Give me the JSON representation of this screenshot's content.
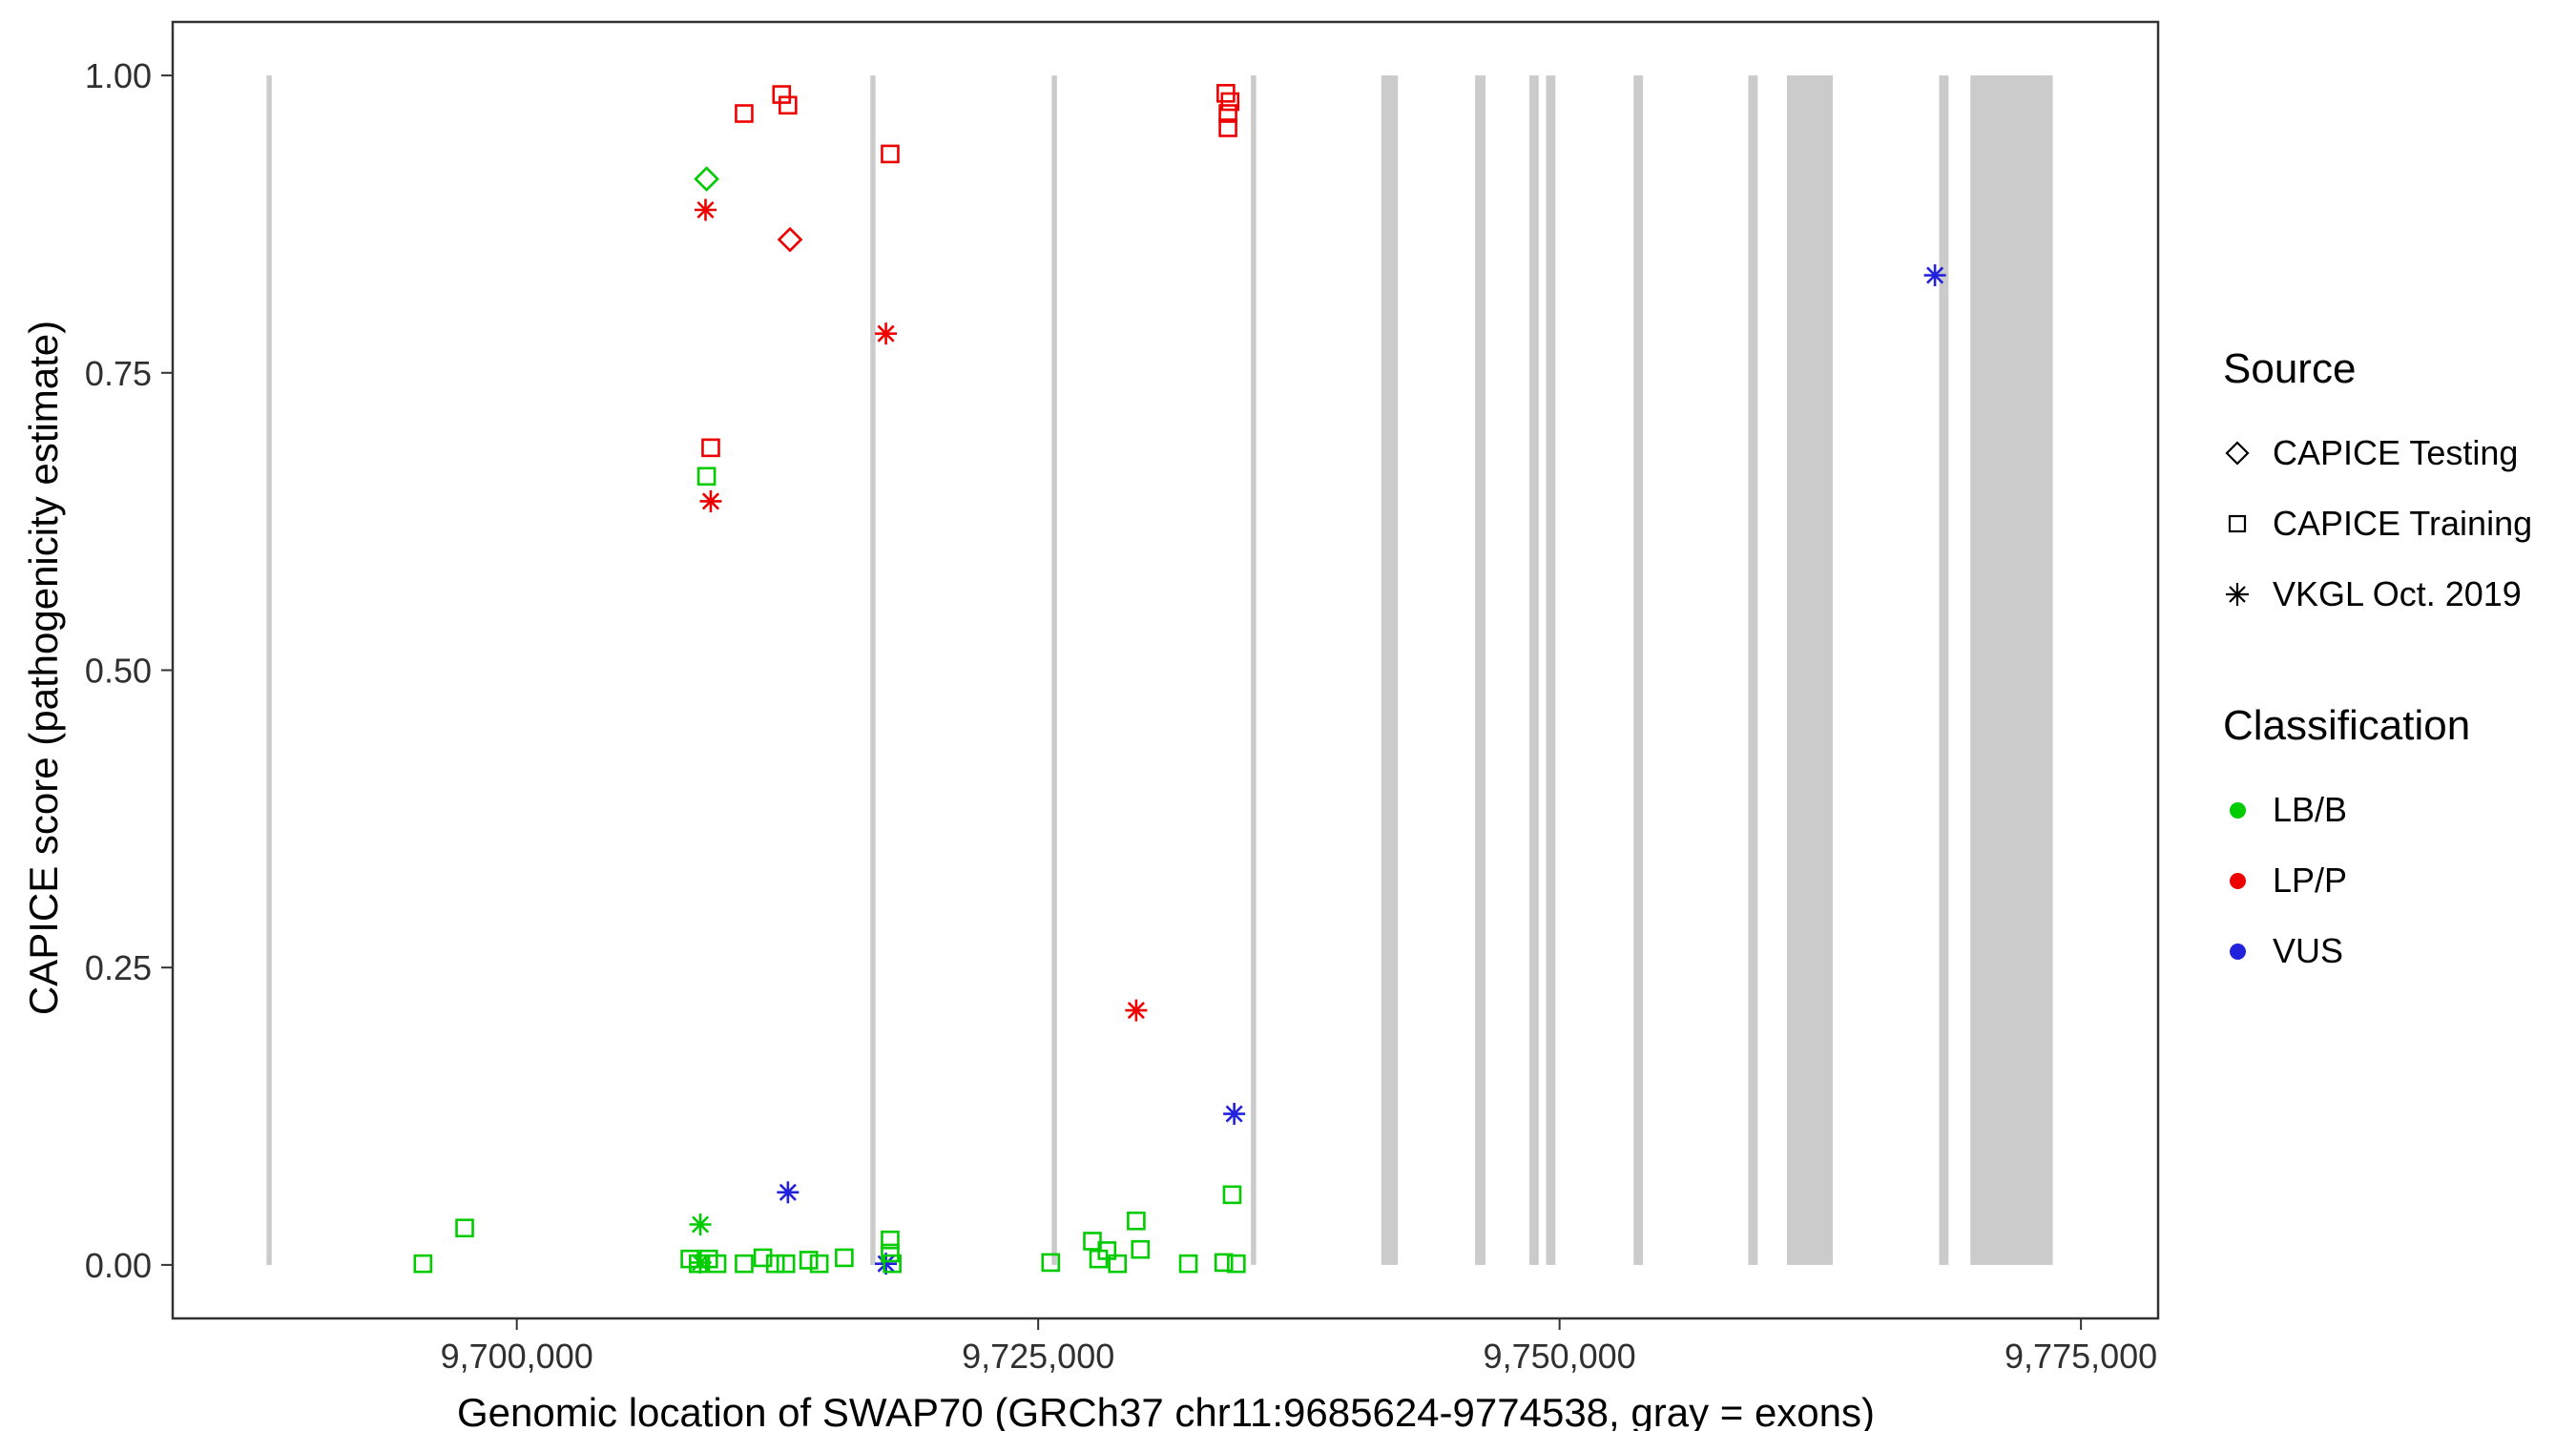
{
  "figure": {
    "xlabel": "Genomic location of SWAP70 (GRCh37 chr11:9685624-9774538, gray = exons)",
    "ylabel": "CAPICE score (pathogenicity estimate)"
  },
  "legend": {
    "source": {
      "title": "Source",
      "items": [
        {
          "label": "CAPICE Testing",
          "shape": "diamond"
        },
        {
          "label": "CAPICE Training",
          "shape": "square"
        },
        {
          "label": "VKGL Oct. 2019",
          "shape": "asterisk"
        }
      ]
    },
    "classification": {
      "title": "Classification",
      "items": [
        {
          "label": "LB/B",
          "color": "#00CC00"
        },
        {
          "label": "LP/P",
          "color": "#EE0000"
        },
        {
          "label": "VUS",
          "color": "#2222DD"
        }
      ]
    }
  },
  "chart_data": {
    "type": "scatter",
    "title": "",
    "xlabel": "Genomic location of SWAP70 (GRCh37 chr11:9685624-9774538, gray = exons)",
    "ylabel": "CAPICE score (pathogenicity estimate)",
    "xlim": [
      9683500,
      9778700
    ],
    "ylim": [
      -0.045,
      1.045
    ],
    "grid": false,
    "legend_position": "right",
    "x_ticks": [
      {
        "value": 9700000,
        "label": "9,700,000"
      },
      {
        "value": 9725000,
        "label": "9,725,000"
      },
      {
        "value": 9750000,
        "label": "9,750,000"
      },
      {
        "value": 9775000,
        "label": "9,775,000"
      }
    ],
    "y_ticks": [
      {
        "value": 0.0,
        "label": "0.00"
      },
      {
        "value": 0.25,
        "label": "0.25"
      },
      {
        "value": 0.5,
        "label": "0.50"
      },
      {
        "value": 0.75,
        "label": "0.75"
      },
      {
        "value": 1.0,
        "label": "1.00"
      }
    ],
    "exon_color": "#CBCBCB",
    "exons": [
      [
        9688000,
        9688250
      ],
      [
        9716950,
        9717200
      ],
      [
        9725650,
        9725900
      ],
      [
        9735200,
        9735450
      ],
      [
        9741450,
        9742250
      ],
      [
        9745950,
        9746450
      ],
      [
        9748550,
        9749000
      ],
      [
        9749350,
        9749800
      ],
      [
        9753550,
        9754000
      ],
      [
        9759050,
        9759500
      ],
      [
        9760900,
        9763100
      ],
      [
        9768200,
        9768650
      ],
      [
        9769700,
        9773650
      ]
    ],
    "colors": {
      "LB/B": "#00CC00",
      "LP/P": "#EE0000",
      "VUS": "#2222DD"
    },
    "shapes": {
      "CAPICE Testing": "diamond",
      "CAPICE Training": "square",
      "VKGL Oct. 2019": "asterisk"
    },
    "points": [
      {
        "x": 9710900,
        "y": 0.968,
        "source": "CAPICE Training",
        "classification": "LP/P"
      },
      {
        "x": 9712700,
        "y": 0.984,
        "source": "CAPICE Training",
        "classification": "LP/P"
      },
      {
        "x": 9713000,
        "y": 0.975,
        "source": "CAPICE Training",
        "classification": "LP/P"
      },
      {
        "x": 9717900,
        "y": 0.934,
        "source": "CAPICE Training",
        "classification": "LP/P"
      },
      {
        "x": 9734000,
        "y": 0.985,
        "source": "CAPICE Training",
        "classification": "LP/P"
      },
      {
        "x": 9734200,
        "y": 0.978,
        "source": "CAPICE Training",
        "classification": "LP/P"
      },
      {
        "x": 9734100,
        "y": 0.968,
        "source": "CAPICE Training",
        "classification": "LP/P"
      },
      {
        "x": 9734100,
        "y": 0.956,
        "source": "CAPICE Training",
        "classification": "LP/P"
      },
      {
        "x": 9709300,
        "y": 0.687,
        "source": "CAPICE Training",
        "classification": "LP/P"
      },
      {
        "x": 9713100,
        "y": 0.862,
        "source": "CAPICE Testing",
        "classification": "LP/P"
      },
      {
        "x": 9709050,
        "y": 0.887,
        "source": "VKGL Oct. 2019",
        "classification": "LP/P"
      },
      {
        "x": 9717700,
        "y": 0.783,
        "source": "VKGL Oct. 2019",
        "classification": "LP/P"
      },
      {
        "x": 9709300,
        "y": 0.642,
        "source": "VKGL Oct. 2019",
        "classification": "LP/P"
      },
      {
        "x": 9729700,
        "y": 0.214,
        "source": "VKGL Oct. 2019",
        "classification": "LP/P"
      },
      {
        "x": 9709100,
        "y": 0.913,
        "source": "CAPICE Testing",
        "classification": "LB/B"
      },
      {
        "x": 9709100,
        "y": 0.663,
        "source": "CAPICE Training",
        "classification": "LB/B"
      },
      {
        "x": 9768000,
        "y": 0.832,
        "source": "VKGL Oct. 2019",
        "classification": "VUS"
      },
      {
        "x": 9713000,
        "y": 0.061,
        "source": "VKGL Oct. 2019",
        "classification": "VUS"
      },
      {
        "x": 9734400,
        "y": 0.127,
        "source": "VKGL Oct. 2019",
        "classification": "VUS"
      },
      {
        "x": 9717700,
        "y": 0.001,
        "source": "VKGL Oct. 2019",
        "classification": "VUS"
      },
      {
        "x": 9708800,
        "y": 0.034,
        "source": "VKGL Oct. 2019",
        "classification": "LB/B"
      },
      {
        "x": 9708800,
        "y": 0.002,
        "source": "VKGL Oct. 2019",
        "classification": "LB/B"
      },
      {
        "x": 9695500,
        "y": 0.001,
        "source": "CAPICE Training",
        "classification": "LB/B"
      },
      {
        "x": 9697500,
        "y": 0.031,
        "source": "CAPICE Training",
        "classification": "LB/B"
      },
      {
        "x": 9708300,
        "y": 0.005,
        "source": "CAPICE Training",
        "classification": "LB/B"
      },
      {
        "x": 9708700,
        "y": 0.001,
        "source": "CAPICE Training",
        "classification": "LB/B"
      },
      {
        "x": 9709200,
        "y": 0.005,
        "source": "CAPICE Training",
        "classification": "LB/B"
      },
      {
        "x": 9709600,
        "y": 0.001,
        "source": "CAPICE Training",
        "classification": "LB/B"
      },
      {
        "x": 9710900,
        "y": 0.001,
        "source": "CAPICE Training",
        "classification": "LB/B"
      },
      {
        "x": 9711800,
        "y": 0.006,
        "source": "CAPICE Training",
        "classification": "LB/B"
      },
      {
        "x": 9712400,
        "y": 0.001,
        "source": "CAPICE Training",
        "classification": "LB/B"
      },
      {
        "x": 9712900,
        "y": 0.001,
        "source": "CAPICE Training",
        "classification": "LB/B"
      },
      {
        "x": 9714000,
        "y": 0.004,
        "source": "CAPICE Training",
        "classification": "LB/B"
      },
      {
        "x": 9714500,
        "y": 0.001,
        "source": "CAPICE Training",
        "classification": "LB/B"
      },
      {
        "x": 9715700,
        "y": 0.006,
        "source": "CAPICE Training",
        "classification": "LB/B"
      },
      {
        "x": 9717900,
        "y": 0.021,
        "source": "CAPICE Training",
        "classification": "LB/B"
      },
      {
        "x": 9717900,
        "y": 0.01,
        "source": "CAPICE Training",
        "classification": "LB/B"
      },
      {
        "x": 9718000,
        "y": 0.001,
        "source": "CAPICE Training",
        "classification": "LB/B"
      },
      {
        "x": 9725600,
        "y": 0.002,
        "source": "CAPICE Training",
        "classification": "LB/B"
      },
      {
        "x": 9727600,
        "y": 0.02,
        "source": "CAPICE Training",
        "classification": "LB/B"
      },
      {
        "x": 9727900,
        "y": 0.005,
        "source": "CAPICE Training",
        "classification": "LB/B"
      },
      {
        "x": 9728300,
        "y": 0.012,
        "source": "CAPICE Training",
        "classification": "LB/B"
      },
      {
        "x": 9728800,
        "y": 0.001,
        "source": "CAPICE Training",
        "classification": "LB/B"
      },
      {
        "x": 9729700,
        "y": 0.037,
        "source": "CAPICE Training",
        "classification": "LB/B"
      },
      {
        "x": 9729900,
        "y": 0.013,
        "source": "CAPICE Training",
        "classification": "LB/B"
      },
      {
        "x": 9732200,
        "y": 0.001,
        "source": "CAPICE Training",
        "classification": "LB/B"
      },
      {
        "x": 9734300,
        "y": 0.059,
        "source": "CAPICE Training",
        "classification": "LB/B"
      },
      {
        "x": 9733900,
        "y": 0.002,
        "source": "CAPICE Training",
        "classification": "LB/B"
      },
      {
        "x": 9734500,
        "y": 0.001,
        "source": "CAPICE Training",
        "classification": "LB/B"
      }
    ]
  }
}
